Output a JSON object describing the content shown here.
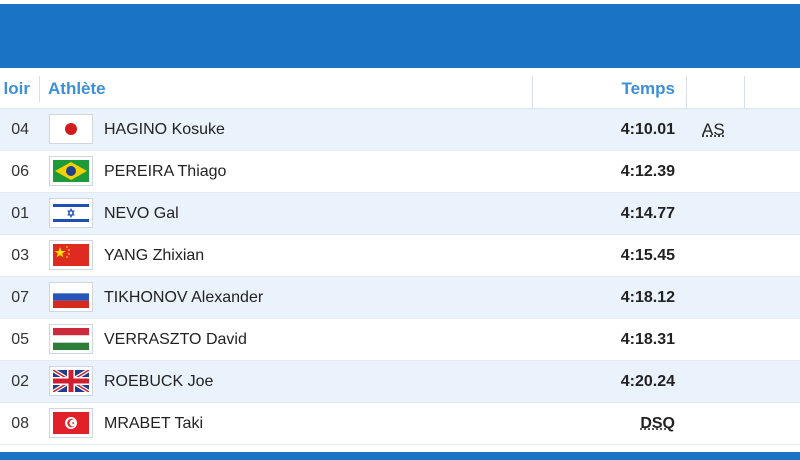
{
  "header": {
    "lane_label": "loir",
    "athlete_label": "Athlète",
    "time_label": "Temps"
  },
  "results": [
    {
      "lane": "04",
      "country": "Japan",
      "flag_icon": "japan-flag-icon",
      "name": "HAGINO Kosuke",
      "time": "4:10.01",
      "note": "AS"
    },
    {
      "lane": "06",
      "country": "Brazil",
      "flag_icon": "brazil-flag-icon",
      "name": "PEREIRA Thiago",
      "time": "4:12.39",
      "note": ""
    },
    {
      "lane": "01",
      "country": "Israel",
      "flag_icon": "israel-flag-icon",
      "name": "NEVO Gal",
      "time": "4:14.77",
      "note": ""
    },
    {
      "lane": "03",
      "country": "China",
      "flag_icon": "china-flag-icon",
      "name": "YANG Zhixian",
      "time": "4:15.45",
      "note": ""
    },
    {
      "lane": "07",
      "country": "Russia",
      "flag_icon": "russia-flag-icon",
      "name": "TIKHONOV Alexander",
      "time": "4:18.12",
      "note": ""
    },
    {
      "lane": "05",
      "country": "Hungary",
      "flag_icon": "hungary-flag-icon",
      "name": "VERRASZTO David",
      "time": "4:18.31",
      "note": ""
    },
    {
      "lane": "02",
      "country": "Great Britain",
      "flag_icon": "great-britain-flag-icon",
      "name": "ROEBUCK Joe",
      "time": "4:20.24",
      "note": ""
    },
    {
      "lane": "08",
      "country": "Tunisia",
      "flag_icon": "tunisia-flag-icon",
      "name": "MRABET Taki",
      "time": "DSQ",
      "note": ""
    }
  ],
  "colors": {
    "header_blue": "#1a73c5",
    "header_text": "#3d8fd6",
    "row_alt": "#eaf2fb"
  }
}
